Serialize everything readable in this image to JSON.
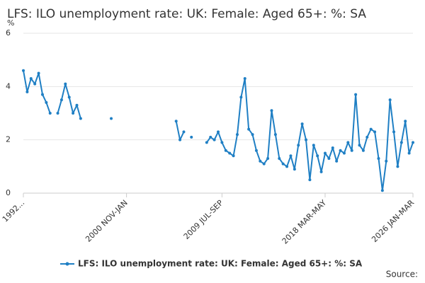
{
  "chart_data": {
    "type": "line",
    "title": "LFS: ILO unemployment rate: UK: Female: Aged 65+: %: SA",
    "y_label": "%",
    "source_label": "Source:",
    "categories": [
      "1992...",
      null,
      null,
      null,
      null,
      null,
      null,
      null,
      null,
      null,
      null,
      null,
      null,
      null,
      null,
      null,
      null,
      null,
      null,
      null,
      null,
      null,
      null,
      null,
      null,
      null,
      null,
      "2000 NOV-JAN",
      null,
      null,
      null,
      null,
      null,
      null,
      null,
      null,
      null,
      null,
      null,
      null,
      null,
      null,
      null,
      null,
      null,
      null,
      null,
      null,
      null,
      null,
      null,
      null,
      "2009 JUL-SEP",
      null,
      null,
      null,
      null,
      null,
      null,
      null,
      null,
      null,
      null,
      null,
      null,
      null,
      null,
      null,
      null,
      null,
      null,
      null,
      null,
      null,
      null,
      null,
      null,
      null,
      null,
      "2018 MAR-MAY",
      null,
      null,
      null,
      null,
      null,
      null,
      null,
      null,
      null,
      null,
      null,
      null,
      null,
      null,
      null,
      null,
      null,
      null,
      null,
      null,
      null,
      null,
      "2026 JAN-MAR"
    ],
    "series": [
      {
        "name": "LFS: ILO unemployment rate: UK: Female: Aged 65+: %: SA",
        "color": "#1f7fc4",
        "values": [
          4.6,
          3.8,
          4.3,
          4.1,
          4.5,
          3.7,
          3.4,
          3.0,
          null,
          3.0,
          3.5,
          4.1,
          3.6,
          3.0,
          3.3,
          2.8,
          null,
          null,
          null,
          null,
          null,
          null,
          null,
          2.8,
          null,
          null,
          null,
          null,
          null,
          null,
          null,
          null,
          null,
          null,
          null,
          null,
          null,
          null,
          null,
          null,
          2.7,
          2.0,
          2.3,
          null,
          2.1,
          null,
          null,
          null,
          1.9,
          2.1,
          2.0,
          2.3,
          1.9,
          1.6,
          1.5,
          1.4,
          2.2,
          3.6,
          4.3,
          2.4,
          2.2,
          1.6,
          1.2,
          1.1,
          1.3,
          3.1,
          2.2,
          1.3,
          1.1,
          1.0,
          1.4,
          0.9,
          1.8,
          2.6,
          2.0,
          0.5,
          1.8,
          1.4,
          0.8,
          1.5,
          1.3,
          1.7,
          1.2,
          1.6,
          1.5,
          1.9,
          1.6,
          3.7,
          1.8,
          1.6,
          2.1,
          2.4,
          2.3,
          1.3,
          0.1,
          1.2,
          3.5,
          2.3,
          1.0,
          1.9,
          2.7,
          1.5,
          1.9
        ]
      }
    ],
    "ylim": [
      0,
      6
    ],
    "yticks": [
      0,
      2,
      4,
      6
    ],
    "grid": true
  }
}
